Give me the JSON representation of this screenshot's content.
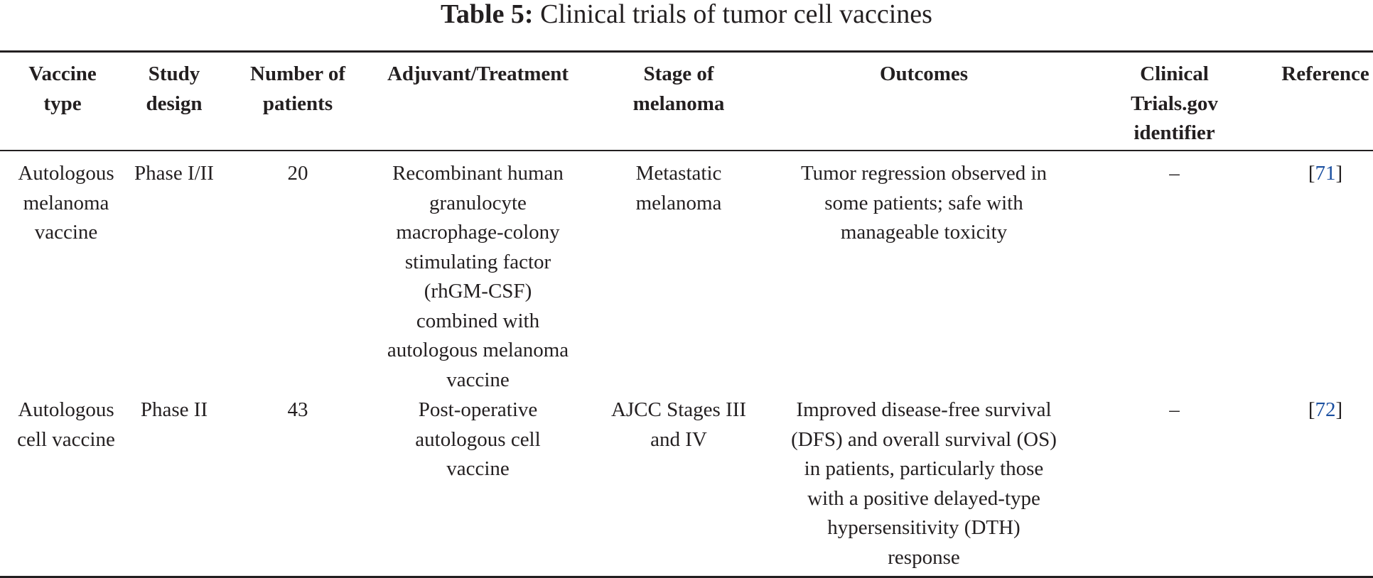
{
  "caption": {
    "label": "Table 5:",
    "text": " Clinical trials of tumor cell vaccines"
  },
  "columns": [
    [
      "Vaccine",
      "type"
    ],
    [
      "Study",
      "design"
    ],
    [
      "Number of",
      "patients"
    ],
    [
      "Adjuvant/Treatment"
    ],
    [
      "Stage of",
      "melanoma"
    ],
    [
      "Outcomes"
    ],
    [
      "Clinical",
      "Trials.gov",
      "identifier"
    ],
    [
      "Reference"
    ]
  ],
  "rows": [
    {
      "vaccine_type": [
        "Autologous",
        "melanoma",
        "vaccine"
      ],
      "study_design": [
        "Phase I/II"
      ],
      "patients": [
        "20"
      ],
      "treatment": [
        "Recombinant human",
        "granulocyte",
        "macrophage-colony",
        "stimulating factor",
        "(rhGM-CSF)",
        "combined with",
        "autologous melanoma",
        "vaccine"
      ],
      "stage": [
        "Metastatic",
        "melanoma"
      ],
      "outcomes": [
        "Tumor regression observed in",
        "some patients; safe with",
        "manageable toxicity"
      ],
      "identifier": "–",
      "reference_open": "[",
      "reference_num": "71",
      "reference_close": "]"
    },
    {
      "vaccine_type": [
        "Autologous",
        "cell vaccine"
      ],
      "study_design": [
        "Phase II"
      ],
      "patients": [
        "43"
      ],
      "treatment": [
        "Post-operative",
        "autologous cell",
        "vaccine"
      ],
      "stage": [
        "AJCC Stages III",
        "and IV"
      ],
      "outcomes": [
        "Improved disease-free survival",
        "(DFS) and overall survival (OS)",
        "in patients, particularly those",
        "with a positive delayed-type",
        "hypersensitivity (DTH)",
        "response"
      ],
      "identifier": "–",
      "reference_open": "[",
      "reference_num": "72",
      "reference_close": "]"
    }
  ],
  "colors": {
    "text": "#231f20",
    "link": "#1a4fa0"
  }
}
